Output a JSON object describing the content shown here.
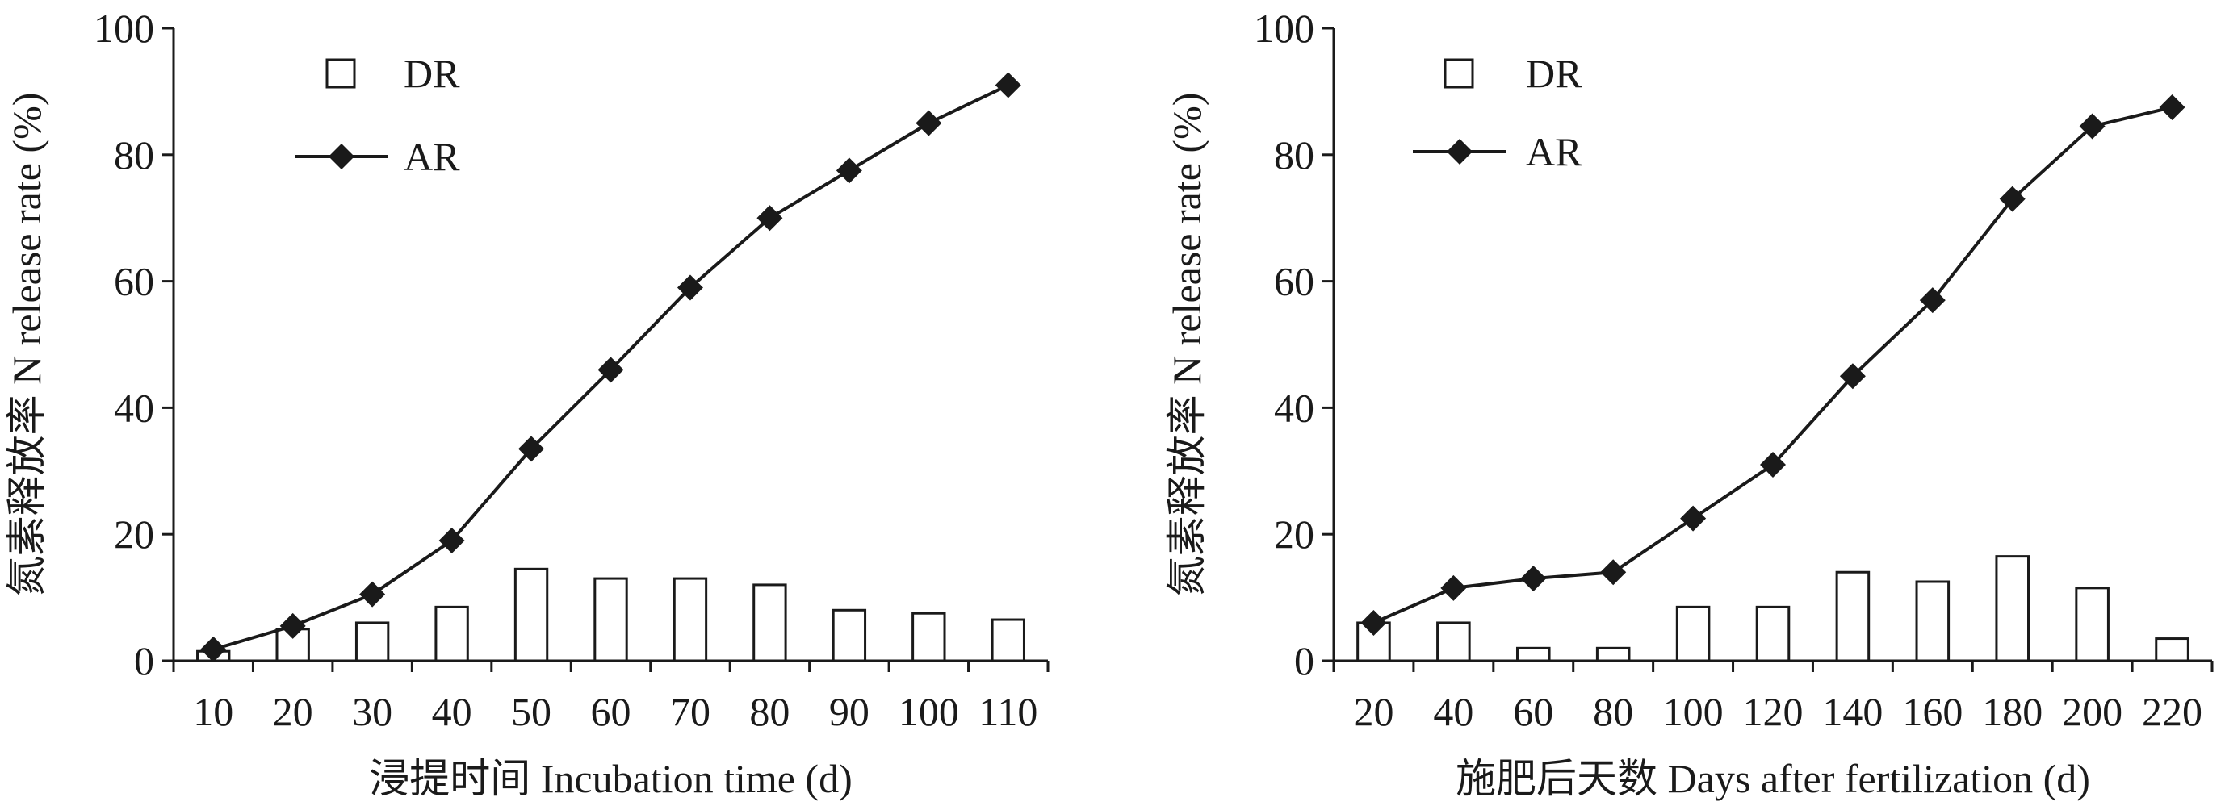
{
  "chart_data": [
    {
      "type": "bar+line",
      "ylabel": "氮素释放率 N release rate (%)",
      "xlabel": "浸提时间 Incubation time (d)",
      "ylim": [
        0,
        100
      ],
      "yticks": [
        "0",
        "20",
        "40",
        "60",
        "80",
        "100"
      ],
      "categories": [
        "10",
        "20",
        "30",
        "40",
        "50",
        "60",
        "70",
        "80",
        "90",
        "100",
        "110"
      ],
      "legend": {
        "position": "top-left",
        "bar_label": "DR",
        "line_label": "AR"
      },
      "series": [
        {
          "name": "DR",
          "kind": "bar",
          "values": [
            1.5,
            5,
            6,
            8.5,
            14.5,
            13,
            13,
            12,
            8,
            7.5,
            6.5
          ]
        },
        {
          "name": "AR",
          "kind": "line",
          "marker": "diamond",
          "values": [
            1.8,
            5.5,
            10.5,
            19,
            33.5,
            46,
            59,
            70,
            77.5,
            85,
            91
          ]
        }
      ]
    },
    {
      "type": "bar+line",
      "ylabel": "氮素释放率 N release rate (%)",
      "xlabel": "施肥后天数 Days after fertilization (d)",
      "ylim": [
        0,
        100
      ],
      "yticks": [
        "0",
        "20",
        "40",
        "60",
        "80",
        "100"
      ],
      "categories": [
        "20",
        "40",
        "60",
        "80",
        "100",
        "120",
        "140",
        "160",
        "180",
        "200",
        "220"
      ],
      "legend": {
        "position": "top-left",
        "bar_label": "DR",
        "line_label": "AR"
      },
      "series": [
        {
          "name": "DR",
          "kind": "bar",
          "values": [
            6,
            6,
            2,
            2,
            8.5,
            8.5,
            14,
            12.5,
            16.5,
            11.5,
            3.5
          ]
        },
        {
          "name": "AR",
          "kind": "line",
          "marker": "diamond",
          "values": [
            6,
            11.5,
            13,
            14,
            22.5,
            31,
            45,
            57,
            73,
            84.5,
            87.5
          ]
        }
      ]
    }
  ]
}
